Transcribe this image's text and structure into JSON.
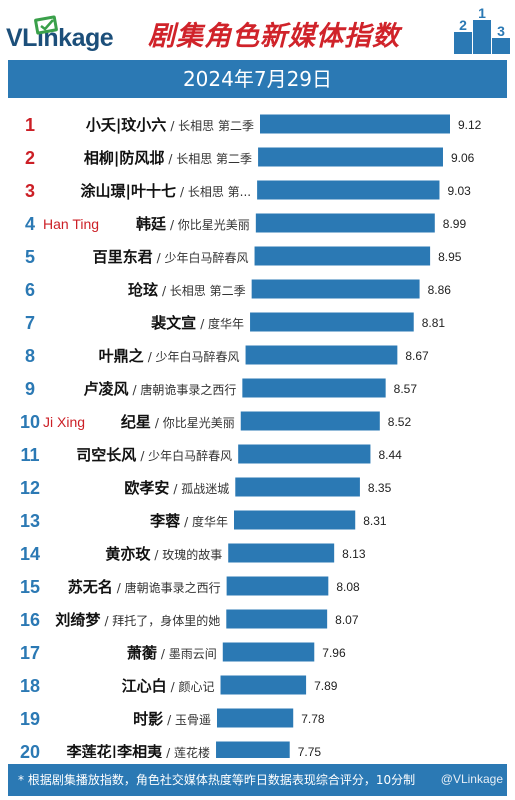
{
  "header": {
    "brand": "VLinkage",
    "title": "剧集角色新媒体指数",
    "podium_labels": [
      "2",
      "1",
      "3"
    ]
  },
  "date": "2024年7月29日",
  "footer": {
    "note": "* 根据剧集播放指数，角色社交媒体热度等昨日数据表现综合评分，10分制",
    "watermark": "@VLinkage"
  },
  "colors": {
    "bar": "#2b79b4",
    "rank_top": "#cc1f26",
    "rank_other": "#2b79b4",
    "annotation": "#cc1f26",
    "title": "#d0232a"
  },
  "chart_data": {
    "type": "bar",
    "orientation": "horizontal",
    "xlim": [
      0,
      9.12
    ],
    "grid": false,
    "rows": [
      {
        "rank": "1",
        "character": "小夭|玟小六",
        "drama": "/ 长相思 第二季",
        "value": 9.12,
        "annotation": ""
      },
      {
        "rank": "2",
        "character": "相柳|防风邶",
        "drama": "/ 长相思 第二季",
        "value": 9.06,
        "annotation": ""
      },
      {
        "rank": "3",
        "character": "涂山璟|叶十七",
        "drama": "/ 长相思 第...",
        "value": 9.03,
        "annotation": ""
      },
      {
        "rank": "4",
        "character": "韩廷",
        "drama": "/ 你比星光美丽",
        "value": 8.99,
        "annotation": "Han Ting"
      },
      {
        "rank": "5",
        "character": "百里东君",
        "drama": "/ 少年白马醉春风",
        "value": 8.95,
        "annotation": ""
      },
      {
        "rank": "6",
        "character": "玱玹",
        "drama": "/ 长相思 第二季",
        "value": 8.86,
        "annotation": ""
      },
      {
        "rank": "7",
        "character": "裴文宣",
        "drama": "/ 度华年",
        "value": 8.81,
        "annotation": ""
      },
      {
        "rank": "8",
        "character": "叶鼎之",
        "drama": "/ 少年白马醉春风",
        "value": 8.67,
        "annotation": ""
      },
      {
        "rank": "9",
        "character": "卢凌风",
        "drama": "/ 唐朝诡事录之西行",
        "value": 8.57,
        "annotation": ""
      },
      {
        "rank": "10",
        "character": "纪星",
        "drama": "/ 你比星光美丽",
        "value": 8.52,
        "annotation": "Ji Xing"
      },
      {
        "rank": "11",
        "character": "司空长风",
        "drama": "/ 少年白马醉春风",
        "value": 8.44,
        "annotation": ""
      },
      {
        "rank": "12",
        "character": "欧孝安",
        "drama": "/ 孤战迷城",
        "value": 8.35,
        "annotation": ""
      },
      {
        "rank": "13",
        "character": "李蓉",
        "drama": "/ 度华年",
        "value": 8.31,
        "annotation": ""
      },
      {
        "rank": "14",
        "character": "黄亦玫",
        "drama": "/ 玫瑰的故事",
        "value": 8.13,
        "annotation": ""
      },
      {
        "rank": "15",
        "character": "苏无名",
        "drama": "/ 唐朝诡事录之西行",
        "value": 8.08,
        "annotation": ""
      },
      {
        "rank": "16",
        "character": "刘绮梦",
        "drama": "/ 拜托了，身体里的她",
        "value": 8.07,
        "annotation": ""
      },
      {
        "rank": "17",
        "character": "萧蘅",
        "drama": "/ 墨雨云间",
        "value": 7.96,
        "annotation": ""
      },
      {
        "rank": "18",
        "character": "江心白",
        "drama": "/ 颜心记",
        "value": 7.89,
        "annotation": ""
      },
      {
        "rank": "19",
        "character": "时影",
        "drama": "/ 玉骨遥",
        "value": 7.78,
        "annotation": ""
      },
      {
        "rank": "20",
        "character": "李莲花|李相夷",
        "drama": "/ 莲花楼",
        "value": 7.75,
        "annotation": ""
      }
    ]
  }
}
